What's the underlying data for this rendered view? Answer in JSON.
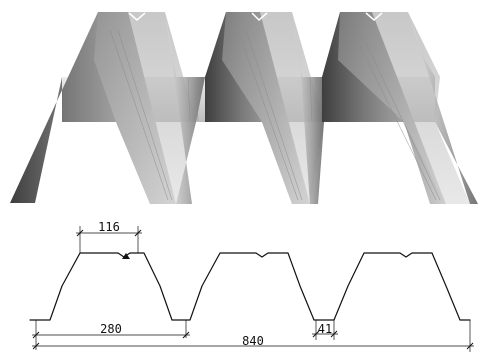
{
  "illustration": {
    "name": "trapezoidal-steel-deck-3d"
  },
  "cross_section": {
    "dimensions": {
      "top_flange_width": "116",
      "rib_pitch": "280",
      "total_cover_width": "840",
      "bottom_flange_width": "41"
    }
  },
  "colors": {
    "sheet_light": "#e2e2e2",
    "sheet_mid": "#a9a9a9",
    "sheet_dark": "#4a4a4a",
    "outline": "#111111"
  }
}
